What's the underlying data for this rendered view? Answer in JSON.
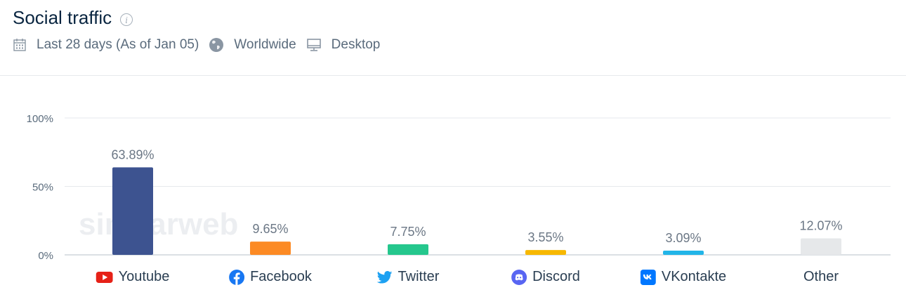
{
  "header": {
    "title": "Social traffic",
    "date_range": "Last 28 days (As of Jan 05)",
    "region": "Worldwide",
    "device": "Desktop"
  },
  "icons": {
    "info": "info-icon",
    "calendar": "calendar-icon",
    "globe": "globe-icon",
    "monitor": "desktop-icon"
  },
  "watermark": "similarweb",
  "chart_data": {
    "type": "bar",
    "categories": [
      "Youtube",
      "Facebook",
      "Twitter",
      "Discord",
      "VKontakte",
      "Other"
    ],
    "values": [
      63.89,
      9.65,
      7.75,
      3.55,
      3.09,
      12.07
    ],
    "value_labels": [
      "63.89%",
      "9.65%",
      "7.75%",
      "3.55%",
      "3.09%",
      "12.07%"
    ],
    "colors": [
      "#3d5390",
      "#fc8a24",
      "#25c78d",
      "#f7b800",
      "#22b5e8",
      "#e6e8ea"
    ],
    "y_ticks": [
      "100%",
      "50%",
      "0%"
    ],
    "ylim": [
      0,
      100
    ],
    "grid": true
  },
  "category_icons": [
    "youtube-icon",
    "facebook-icon",
    "twitter-icon",
    "discord-icon",
    "vkontakte-icon",
    ""
  ]
}
